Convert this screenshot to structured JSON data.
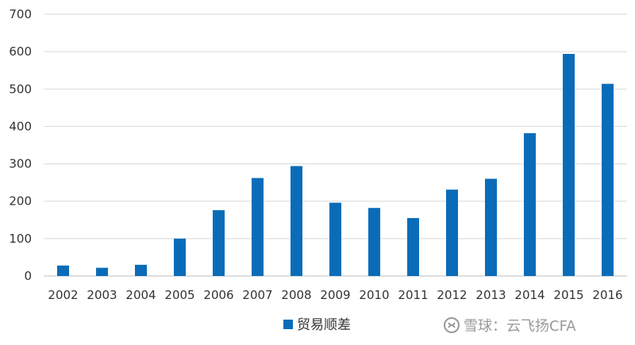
{
  "chart_data": {
    "type": "bar",
    "categories": [
      "2002",
      "2003",
      "2004",
      "2005",
      "2006",
      "2007",
      "2008",
      "2009",
      "2010",
      "2011",
      "2012",
      "2013",
      "2014",
      "2015",
      "2016"
    ],
    "series": [
      {
        "name": "贸易顺差",
        "color": "#0a6cb8",
        "values": [
          28,
          22,
          30,
          100,
          176,
          262,
          294,
          196,
          182,
          155,
          231,
          260,
          382,
          594,
          514
        ]
      }
    ],
    "ylim": [
      0,
      700
    ],
    "yticks": [
      0,
      100,
      200,
      300,
      400,
      500,
      600,
      700
    ],
    "grid": true,
    "legend_position": "bottom",
    "title": "",
    "xlabel": "",
    "ylabel": ""
  },
  "watermark": {
    "text": "雪球：云飞扬CFA"
  }
}
